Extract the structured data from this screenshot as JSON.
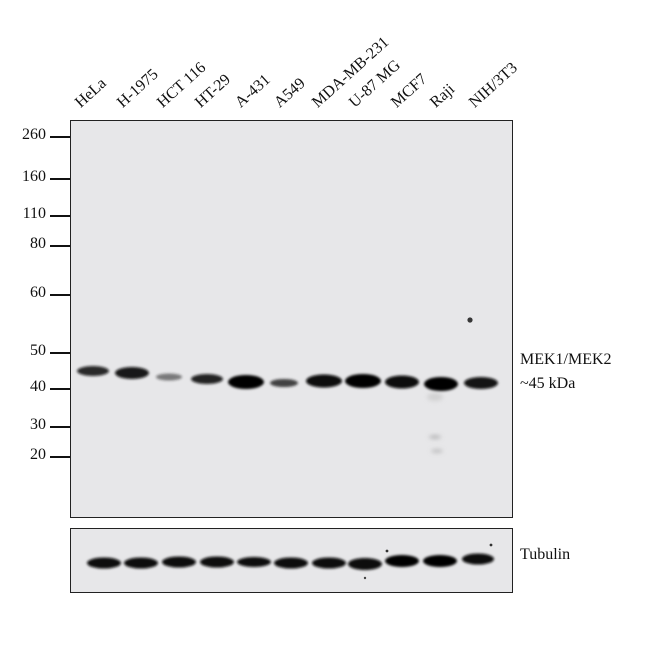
{
  "lanes": [
    "HeLa",
    "H-1975",
    "HCT 116",
    "HT-29",
    "A-431",
    "A549",
    "MDA-MB-231",
    "U-87 MG",
    "MCF7",
    "Raji",
    "NIH/3T3"
  ],
  "mw_markers": [
    "260",
    "160",
    "110",
    "80",
    "60",
    "50",
    "40",
    "30",
    "20"
  ],
  "target_label": {
    "line1": "MEK1/MEK2",
    "line2": "~45 kDa"
  },
  "loading_control": "Tubulin"
}
